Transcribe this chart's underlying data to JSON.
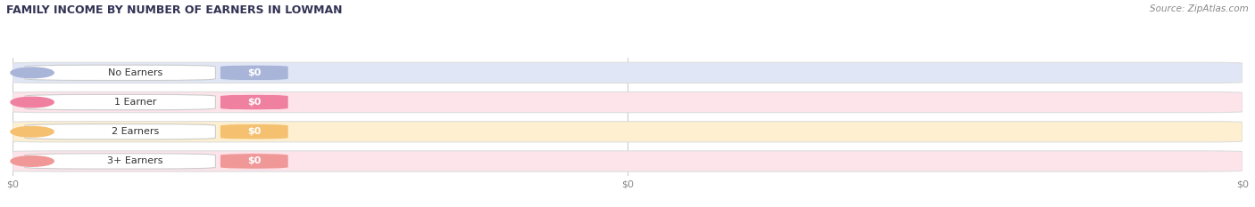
{
  "title": "FAMILY INCOME BY NUMBER OF EARNERS IN LOWMAN",
  "source": "Source: ZipAtlas.com",
  "categories": [
    "No Earners",
    "1 Earner",
    "2 Earners",
    "3+ Earners"
  ],
  "values": [
    0,
    0,
    0,
    0
  ],
  "bar_colors": [
    "#a8b4d8",
    "#f080a0",
    "#f5c070",
    "#f09898"
  ],
  "bar_light_colors": [
    "#e0e6f5",
    "#fce4ea",
    "#fdefd0",
    "#fce4ea"
  ],
  "bar_bg_color": "#f5f5f5",
  "label_bg_color": "#ffffff",
  "title_color": "#333355",
  "tick_label_color": "#888888",
  "source_color": "#888888",
  "background_color": "#ffffff",
  "figsize": [
    14.06,
    2.33
  ],
  "dpi": 100
}
